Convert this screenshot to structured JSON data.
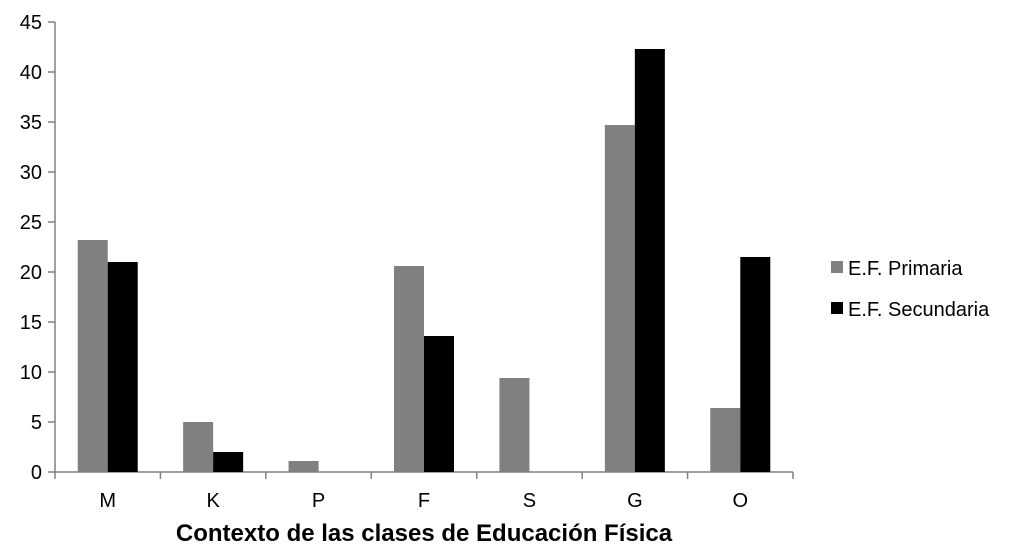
{
  "chart_data": {
    "type": "bar",
    "title": "",
    "xlabel": "Contexto de las clases de Educación Física",
    "ylabel": "",
    "categories": [
      "M",
      "K",
      "P",
      "F",
      "S",
      "G",
      "O"
    ],
    "series": [
      {
        "name": "E.F. Primaria",
        "color": "#808080",
        "values": [
          23.2,
          5,
          1.1,
          20.6,
          9.4,
          34.7,
          6.4
        ]
      },
      {
        "name": "E.F. Secundaria",
        "color": "#000000",
        "values": [
          21,
          2,
          0,
          13.6,
          0,
          42.3,
          21.5
        ]
      }
    ],
    "ylim": [
      0,
      45
    ],
    "yticks": [
      0,
      5,
      10,
      15,
      20,
      25,
      30,
      35,
      40,
      45
    ],
    "grid": false,
    "legend_position": "right"
  }
}
